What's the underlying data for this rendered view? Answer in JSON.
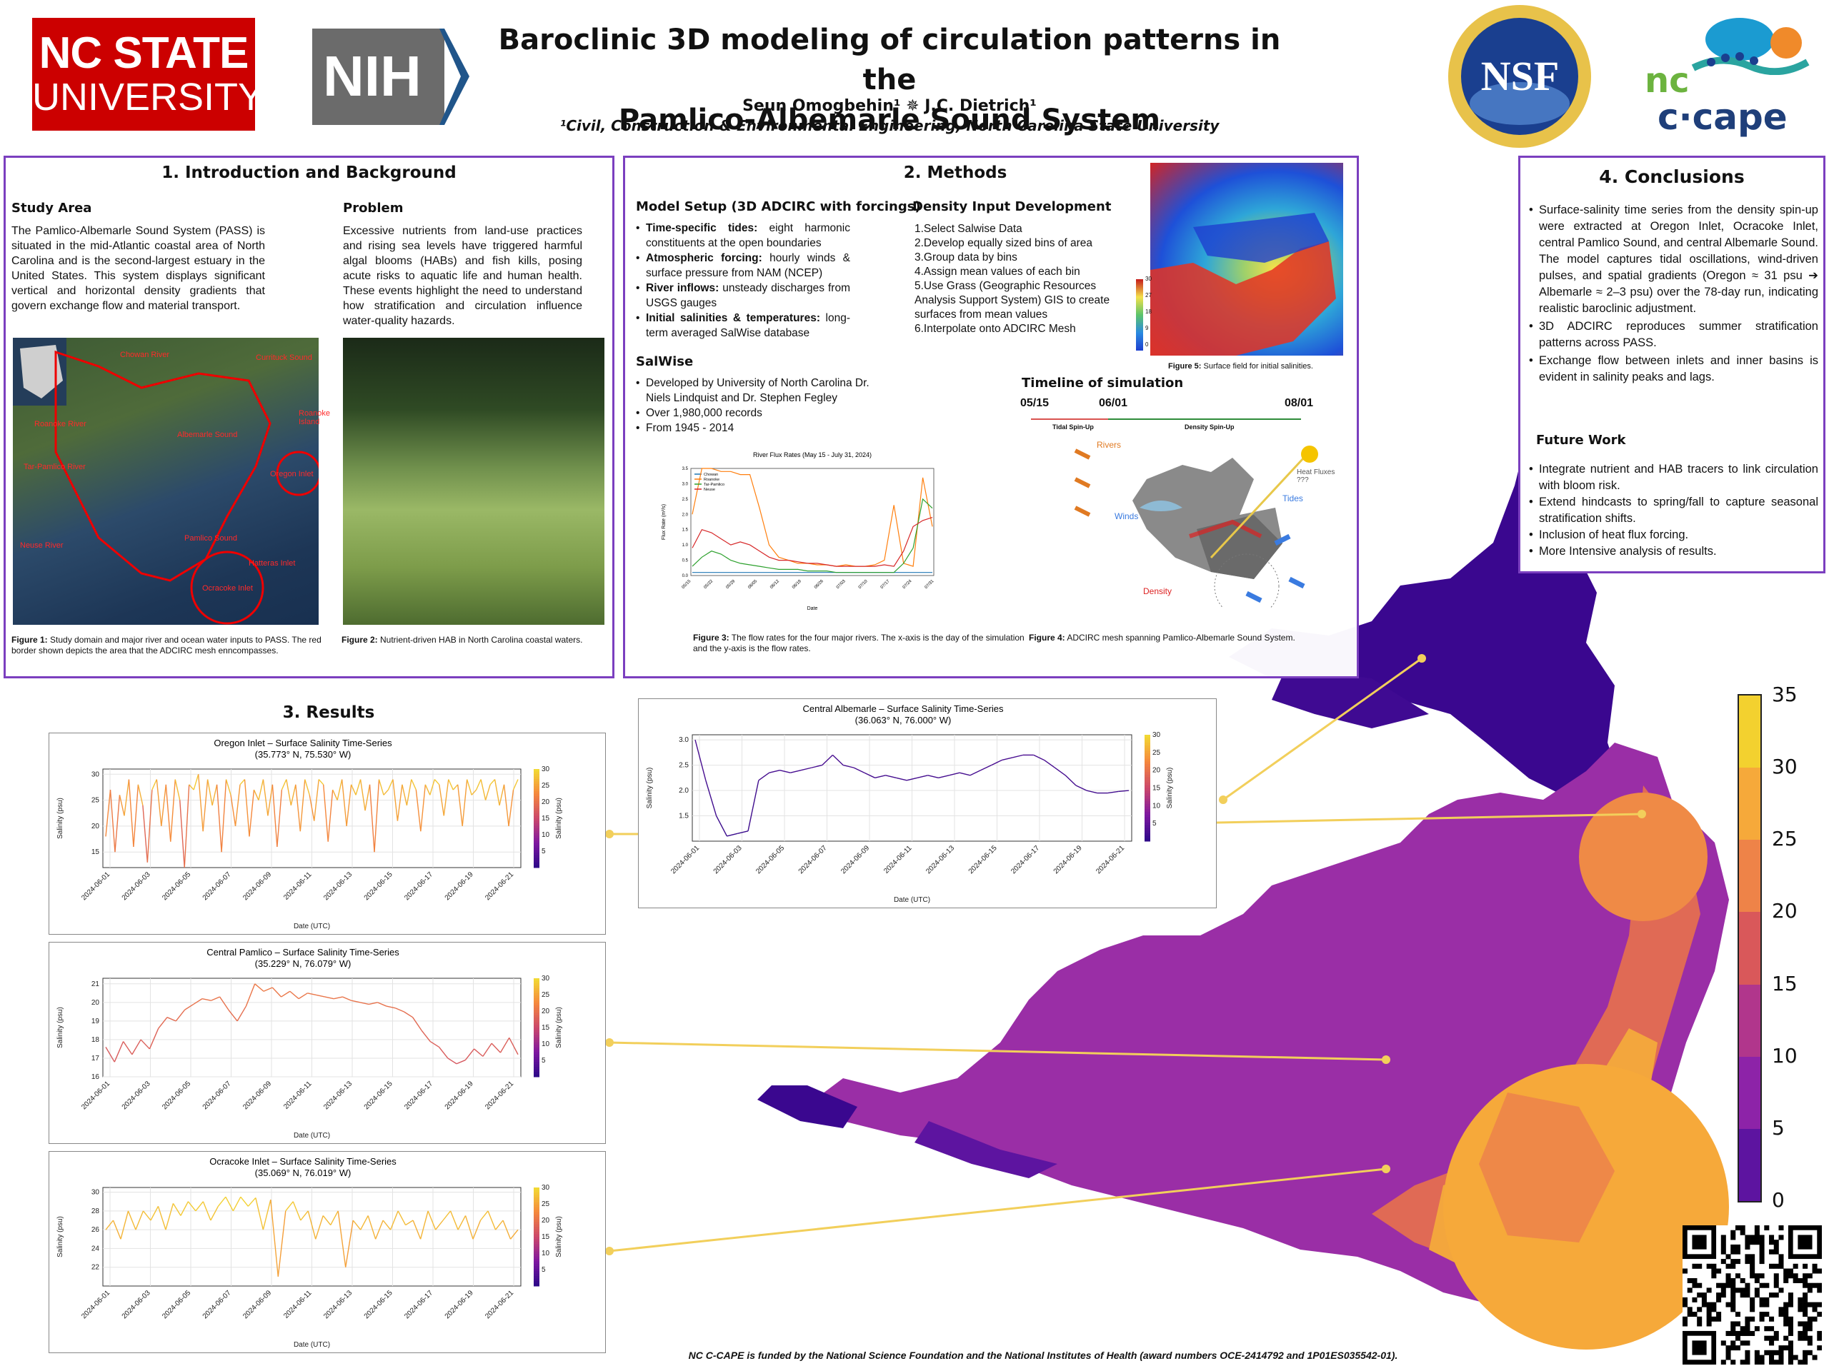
{
  "header": {
    "title_line1": "Baroclinic 3D modeling of circulation patterns in the",
    "title_line2": "Pamlico-Albemarle Sound System",
    "authors": "Seun Omogbehin¹ ✵ J.C. Dietrich¹",
    "affiliation": "¹Civil, Construction & Environmental Engineering, North Carolina State University",
    "logo_ncsu_line1": "NC STATE",
    "logo_ncsu_line2": "UNIVERSITY",
    "logo_nih": "NIH",
    "logo_nsf": "NSF",
    "logo_nccape_nc": "nc",
    "logo_nccape_cape": "c·cape"
  },
  "intro": {
    "heading": "1. Introduction and Background",
    "study_area_title": "Study Area",
    "study_area_text": "The Pamlico-Albemarle Sound System (PASS) is situated in the mid-Atlantic coastal area of North Carolina and is the second-largest estuary in the United States. This system displays significant vertical and horizontal density gradients that govern exchange flow and material transport.",
    "problem_title": "Problem",
    "problem_text": "Excessive nutrients from land-use practices and rising sea levels have triggered harmful algal blooms (HABs) and fish kills, posing acute risks to aquatic life and human health. These events highlight the need to understand how stratification and circulation influence water-quality hazards.",
    "map_labels": [
      "Chowan River",
      "Currituck Sound",
      "Roanoke Island",
      "Roanoke River",
      "Albemarle Sound",
      "Tar-Pamlico River",
      "Oregon Inlet",
      "Pamlico Sound",
      "Neuse River",
      "Ocracoke Inlet",
      "Hatteras Inlet"
    ],
    "fig1_label": "Figure 1:",
    "fig1_caption": " Study domain and major river and ocean water inputs to PASS. The red border shown depicts the area that the ADCIRC mesh enncompasses.",
    "fig2_label": "Figure 2:",
    "fig2_caption": " Nutrient-driven HAB in North Carolina coastal waters."
  },
  "methods": {
    "heading": "2. Methods",
    "setup_title": "Model Setup (3D ADCIRC with forcings)",
    "setup_items": [
      {
        "b": "Time-specific tides:",
        "t": " eight harmonic constituents at the open boundaries"
      },
      {
        "b": "Atmospheric forcing:",
        "t": " hourly winds & surface pressure from NAM (NCEP)"
      },
      {
        "b": "River inflows:",
        "t": " unsteady discharges from USGS gauges"
      },
      {
        "b": "Initial salinities & temperatures:",
        "t": " long-term averaged SalWise database"
      }
    ],
    "density_title": "Density Input Development",
    "density_steps": [
      "1.Select Salwise Data",
      "2.Develop equally sized bins of area",
      "3.Group data by bins",
      "4.Assign mean values of each bin",
      "5.Use Grass (Geographic Resources Analysis Support System) GIS to create surfaces from mean values",
      "6.Interpolate onto ADCIRC Mesh"
    ],
    "salwise_title": "SalWise",
    "salwise_items": [
      "Developed by University of North Carolina Dr. Niels Lindquist and Dr. Stephen Fegley",
      "Over 1,980,000 records",
      "From 1945 - 2014"
    ],
    "fig5_label": "Figure 5:",
    "fig5_caption": " Surface field for initial salinities.",
    "fig5_ticks": [
      "30",
      "27",
      "18",
      "9",
      "0"
    ],
    "timeline_title": "Timeline of simulation",
    "timeline_dates": [
      "05/15",
      "06/01",
      "08/01"
    ],
    "timeline_phases": [
      "Tidal Spin-Up",
      "Density Spin-Up"
    ],
    "mesh_labels": [
      "Rivers",
      "Heat Fluxes ???",
      "Tides",
      "Winds",
      "Density"
    ],
    "fig3_label": "Figure 3:",
    "fig3_caption": " The flow rates for the four major rivers. The x-axis is the day of the simulation and the y-axis is the flow rates.",
    "fig4_label": "Figure 4:",
    "fig4_caption": " ADCIRC mesh spanning Pamlico-Albemarle Sound System."
  },
  "conclusions": {
    "heading": "4. Conclusions",
    "items": [
      "Surface-salinity time series from the density spin-up were extracted at Oregon Inlet, Ocracoke Inlet, central Pamlico Sound, and central Albemarle Sound. The model captures tidal oscillations, wind-driven pulses, and spatial gradients (Oregon ≈ 31 psu ➔ Albemarle ≈ 2–3 psu) over the 78-day run, indicating realistic baroclinic adjustment.",
      "3D ADCIRC reproduces summer stratification patterns across PASS.",
      "Exchange flow between inlets and inner basins is evident in salinity peaks and lags."
    ],
    "future_title": "Future Work",
    "future_items": [
      "Integrate nutrient and HAB tracers to link circulation with bloom risk.",
      "Extend hindcasts to spring/fall to capture seasonal stratification shifts.",
      "Inclusion of heat flux forcing.",
      "More Intensive analysis of results."
    ]
  },
  "results": {
    "heading": "3. Results"
  },
  "colorbar": {
    "ticks": [
      "35",
      "30",
      "25",
      "20",
      "15",
      "10",
      "5",
      "0"
    ],
    "colors": [
      "#f3d12f",
      "#f6a93a",
      "#ee8348",
      "#d9585a",
      "#b1368c",
      "#8d23a8",
      "#5d14a0",
      "#32078a"
    ]
  },
  "footer": {
    "funding": "NC C-CAPE is funded by the National Science Foundation and the National Institutes of Health (award numbers OCE-2414792 and 1P01ES035542-01)."
  },
  "chart_data": [
    {
      "type": "line",
      "title": "River Flux Rates (May 15 - July 31, 2024)",
      "xlabel": "Date",
      "ylabel": "Flux Rate (m³/s)",
      "ylim": [
        0,
        3.5
      ],
      "yticks": [
        "0.0",
        "0.5",
        "1.0",
        "1.5",
        "2.0",
        "2.5",
        "3.0",
        "3.5"
      ],
      "x_ticks": [
        "05/15",
        "05/22",
        "05/29",
        "06/05",
        "06/12",
        "06/19",
        "06/26",
        "07/03",
        "07/10",
        "07/17",
        "07/24",
        "07/31"
      ],
      "series": [
        {
          "name": "Chowan",
          "color": "#1f77b4",
          "values": [
            0.1,
            0.1,
            0.1,
            0.1,
            0.1,
            0.1,
            0.1,
            0.1,
            0.1,
            0.1,
            0.1,
            0.1,
            0.1,
            0.1,
            0.1,
            0.1,
            0.1,
            0.1,
            0.1,
            0.1,
            0.1,
            0.1,
            0.1,
            0.1,
            0.1,
            0.1
          ]
        },
        {
          "name": "Roanoke",
          "color": "#ff7f0e",
          "values": [
            2.0,
            3.5,
            3.5,
            3.4,
            3.4,
            3.3,
            3.3,
            2.2,
            1.0,
            0.6,
            0.5,
            0.4,
            0.4,
            0.35,
            0.35,
            0.3,
            0.35,
            0.3,
            0.3,
            0.35,
            0.5,
            2.3,
            0.4,
            0.3,
            3.2,
            1.6
          ]
        },
        {
          "name": "Tar-Pamlico",
          "color": "#2ca02c",
          "values": [
            0.3,
            0.6,
            0.8,
            0.7,
            0.5,
            0.4,
            0.35,
            0.3,
            0.25,
            0.2,
            0.2,
            0.2,
            0.15,
            0.15,
            0.15,
            0.1,
            0.1,
            0.1,
            0.1,
            0.1,
            0.1,
            0.1,
            0.4,
            0.9,
            2.5,
            2.2
          ]
        },
        {
          "name": "Neuse",
          "color": "#d62728",
          "values": [
            0.9,
            1.5,
            1.4,
            1.2,
            1.0,
            1.1,
            1.0,
            0.8,
            0.6,
            0.5,
            0.5,
            0.45,
            0.4,
            0.4,
            0.35,
            0.3,
            0.3,
            0.3,
            0.3,
            0.3,
            0.35,
            0.3,
            0.8,
            1.6,
            1.8,
            1.9
          ]
        }
      ]
    },
    {
      "type": "line",
      "title": "Oregon Inlet – Surface Salinity Time-Series",
      "subtitle": "(35.773° N, 75.530° W)",
      "xlabel": "Date (UTC)",
      "ylabel": "Salinity (psu)",
      "ylim": [
        12,
        31
      ],
      "yticks": [
        "15",
        "20",
        "25",
        "30"
      ],
      "x_ticks": [
        "2024-06-01",
        "2024-06-03",
        "2024-06-05",
        "2024-06-07",
        "2024-06-09",
        "2024-06-11",
        "2024-06-13",
        "2024-06-15",
        "2024-06-17",
        "2024-06-19",
        "2024-06-21"
      ],
      "colorbar_label": "Salinity (psu)",
      "colorbar_ticks": [
        "30",
        "25",
        "20",
        "15",
        "10",
        "5"
      ],
      "values": [
        18,
        27,
        15,
        26,
        22,
        29,
        16,
        28,
        24,
        13,
        27,
        29,
        20,
        28,
        17,
        29,
        25,
        12,
        28,
        27,
        30,
        19,
        29,
        24,
        28,
        15,
        29,
        26,
        20,
        28,
        29,
        18,
        27,
        25,
        29,
        22,
        28,
        16,
        27,
        29,
        24,
        28,
        19,
        29,
        26,
        21,
        29,
        28,
        17,
        27,
        25,
        29,
        20,
        28,
        26,
        29,
        23,
        28,
        15,
        29,
        26,
        27,
        29,
        21,
        28,
        24,
        29,
        27,
        19,
        28,
        26,
        29,
        28,
        22,
        29,
        27,
        28,
        20,
        29,
        26,
        27,
        29,
        25,
        28,
        29,
        24,
        28,
        20,
        27,
        29
      ]
    },
    {
      "type": "line",
      "title": "Central Albemarle – Surface Salinity Time-Series",
      "subtitle": "(36.063° N, 76.000° W)",
      "xlabel": "Date (UTC)",
      "ylabel": "Salinity (psu)",
      "ylim": [
        1.0,
        3.1
      ],
      "yticks": [
        "1.5",
        "2.0",
        "2.5",
        "3.0"
      ],
      "x_ticks": [
        "2024-06-01",
        "2024-06-03",
        "2024-06-05",
        "2024-06-07",
        "2024-06-09",
        "2024-06-11",
        "2024-06-13",
        "2024-06-15",
        "2024-06-17",
        "2024-06-19",
        "2024-06-21"
      ],
      "colorbar_label": "Salinity (psu)",
      "colorbar_ticks": [
        "30",
        "25",
        "20",
        "15",
        "10",
        "5"
      ],
      "values": [
        3.0,
        2.2,
        1.5,
        1.1,
        1.15,
        1.2,
        2.2,
        2.35,
        2.4,
        2.35,
        2.4,
        2.45,
        2.5,
        2.7,
        2.5,
        2.45,
        2.35,
        2.25,
        2.3,
        2.25,
        2.2,
        2.25,
        2.3,
        2.25,
        2.3,
        2.35,
        2.3,
        2.4,
        2.5,
        2.6,
        2.65,
        2.7,
        2.7,
        2.6,
        2.45,
        2.3,
        2.1,
        2.0,
        1.95,
        1.95,
        1.98,
        2.0
      ]
    },
    {
      "type": "line",
      "title": "Central Pamlico – Surface Salinity Time-Series",
      "subtitle": "(35.229° N, 76.079° W)",
      "xlabel": "Date (UTC)",
      "ylabel": "Salinity (psu)",
      "ylim": [
        16,
        21.3
      ],
      "yticks": [
        "16",
        "17",
        "18",
        "19",
        "20",
        "21"
      ],
      "x_ticks": [
        "2024-06-01",
        "2024-06-03",
        "2024-06-05",
        "2024-06-07",
        "2024-06-09",
        "2024-06-11",
        "2024-06-13",
        "2024-06-15",
        "2024-06-17",
        "2024-06-19",
        "2024-06-21"
      ],
      "colorbar_label": "Salinity (psu)",
      "colorbar_ticks": [
        "30",
        "25",
        "20",
        "15",
        "10",
        "5"
      ],
      "values": [
        17.6,
        16.8,
        17.9,
        17.2,
        18.0,
        17.5,
        18.6,
        19.2,
        19.0,
        19.6,
        19.9,
        20.2,
        20.1,
        20.3,
        19.6,
        19.0,
        19.8,
        21.0,
        20.6,
        20.8,
        20.3,
        20.6,
        20.2,
        20.5,
        20.4,
        20.3,
        20.2,
        20.3,
        20.1,
        20.0,
        19.9,
        20.0,
        19.8,
        19.7,
        19.5,
        19.2,
        18.5,
        17.9,
        17.6,
        17.0,
        16.7,
        16.9,
        17.5,
        17.1,
        17.8,
        17.3,
        18.1,
        17.2
      ]
    },
    {
      "type": "line",
      "title": "Ocracoke Inlet – Surface Salinity Time-Series",
      "subtitle": "(35.069° N, 76.019° W)",
      "xlabel": "Date (UTC)",
      "ylabel": "Salinity (psu)",
      "ylim": [
        20,
        30.5
      ],
      "yticks": [
        "22",
        "24",
        "26",
        "28",
        "30"
      ],
      "x_ticks": [
        "2024-06-01",
        "2024-06-03",
        "2024-06-05",
        "2024-06-07",
        "2024-06-09",
        "2024-06-11",
        "2024-06-13",
        "2024-06-15",
        "2024-06-17",
        "2024-06-19",
        "2024-06-21"
      ],
      "colorbar_label": "Salinity (psu)",
      "colorbar_ticks": [
        "30",
        "25",
        "20",
        "15",
        "10",
        "5"
      ],
      "values": [
        26,
        27,
        25,
        28,
        26,
        28,
        27,
        28.5,
        26,
        28.8,
        27.5,
        29,
        28,
        29,
        27,
        28.5,
        29.5,
        28,
        29.5,
        28.5,
        29.4,
        26,
        29.2,
        21,
        28,
        29,
        27,
        28,
        25,
        27.5,
        26.5,
        28,
        22,
        27,
        26,
        27.5,
        25,
        27,
        26,
        28,
        26.5,
        27,
        25,
        28,
        26,
        27,
        28,
        26,
        27.5,
        25,
        27,
        28,
        26,
        27,
        25,
        26
      ]
    }
  ]
}
